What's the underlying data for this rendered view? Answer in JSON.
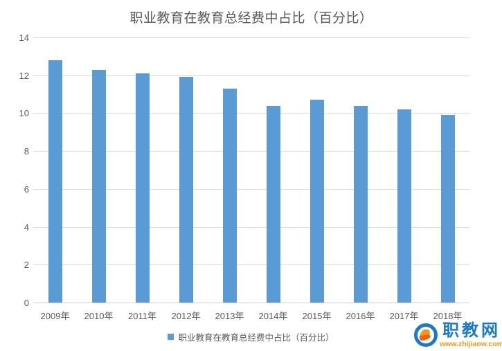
{
  "chart": {
    "title": "职业教育在教育总经费中占比（百分比）",
    "legend_label": "职业教育在教育总经费中占比（百分比）"
  },
  "chart_data": {
    "type": "bar",
    "title": "职业教育在教育总经费中占比（百分比）",
    "categories": [
      "2009年",
      "2010年",
      "2011年",
      "2012年",
      "2013年",
      "2014年",
      "2015年",
      "2016年",
      "2017年",
      "2018年"
    ],
    "series": [
      {
        "name": "职业教育在教育总经费中占比（百分比）",
        "values": [
          12.8,
          12.3,
          12.1,
          11.9,
          11.3,
          10.4,
          10.7,
          10.4,
          10.2,
          9.9
        ]
      }
    ],
    "xlabel": "",
    "ylabel": "",
    "ylim": [
      0,
      14
    ],
    "ytick_step": 2,
    "yticks": [
      0,
      2,
      4,
      6,
      8,
      10,
      12,
      14
    ],
    "grid": true,
    "legend_position": "bottom",
    "bar_color": "#5b9bd5"
  },
  "colors": {
    "bar": "#5b9bd5",
    "gridline": "#d9d9d9",
    "text": "#595959",
    "logo_blue": "#1b7ac8",
    "logo_orange": "#f7941d"
  },
  "watermark": {
    "site_name": "职教网",
    "site_url": "www.zhijiaow.com"
  }
}
